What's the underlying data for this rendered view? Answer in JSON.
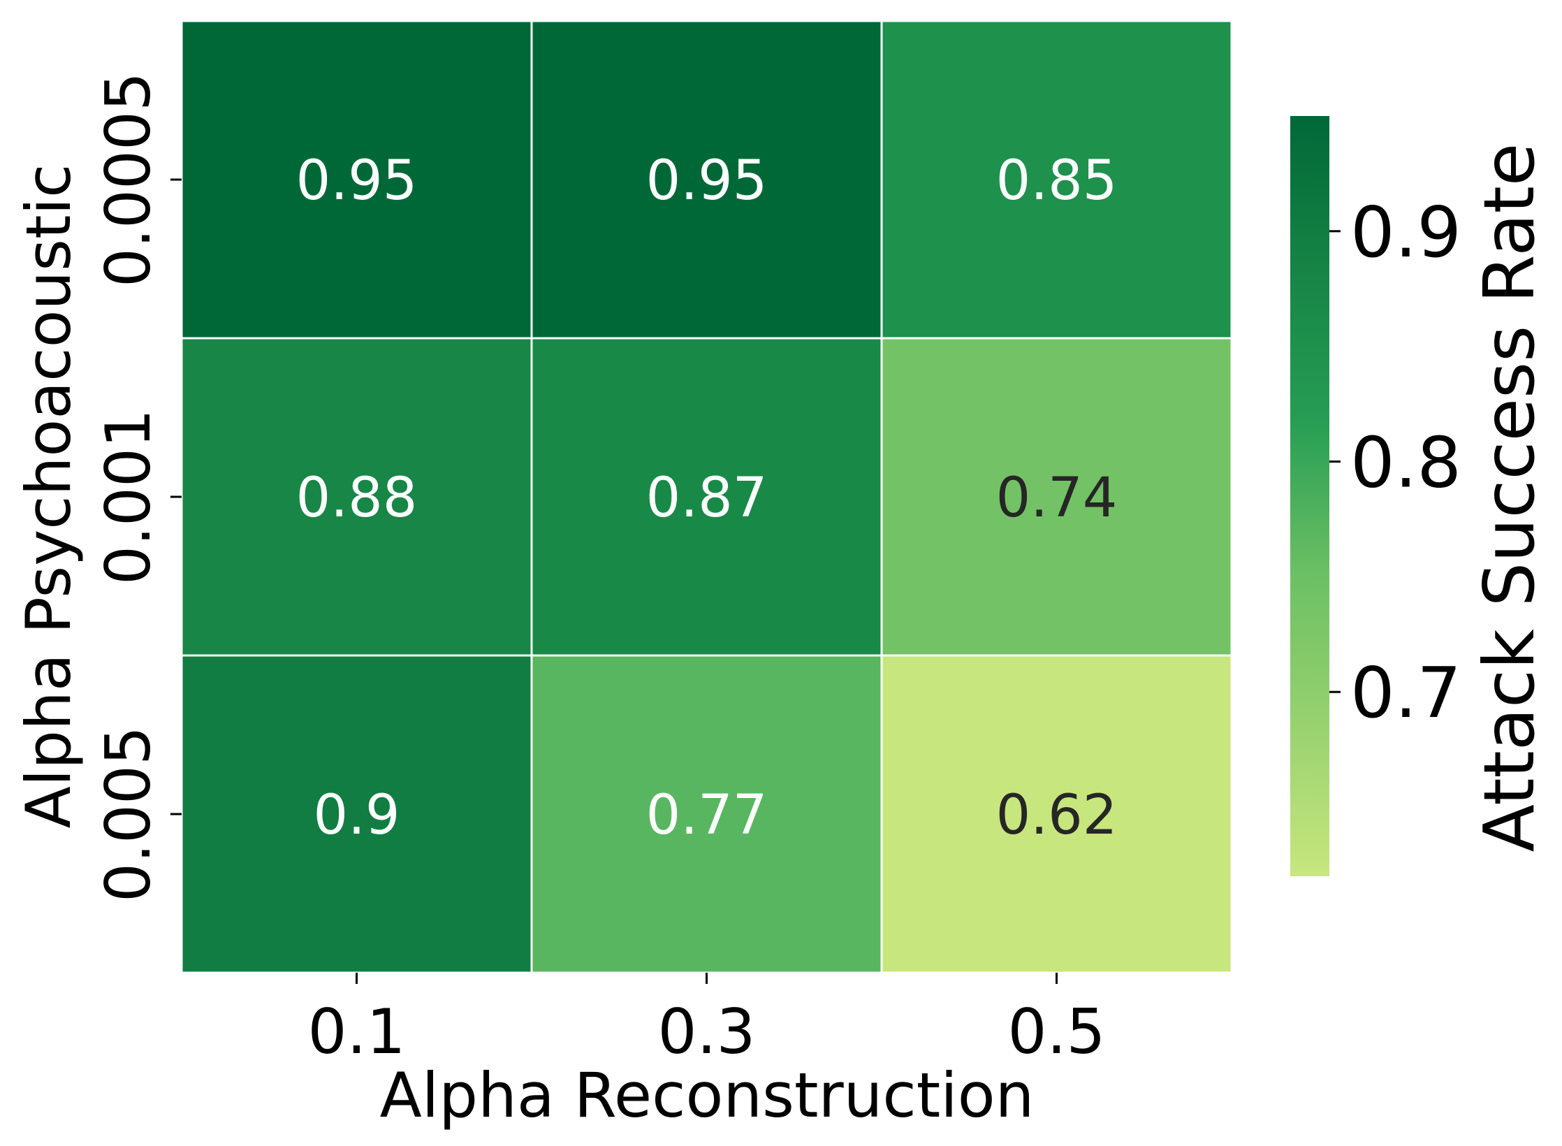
{
  "chart_data": {
    "type": "heatmap",
    "title": "",
    "xlabel": "Alpha Reconstruction",
    "ylabel": "Alpha Psychoacoustic",
    "x_categories": [
      "0.1",
      "0.3",
      "0.5"
    ],
    "y_categories": [
      "0.0005",
      "0.001",
      "0.005"
    ],
    "values": [
      [
        0.95,
        0.95,
        0.85
      ],
      [
        0.88,
        0.87,
        0.74
      ],
      [
        0.9,
        0.77,
        0.62
      ]
    ],
    "value_labels": [
      [
        "0.95",
        "0.95",
        "0.85"
      ],
      [
        "0.88",
        "0.87",
        "0.74"
      ],
      [
        "0.9",
        "0.77",
        "0.62"
      ]
    ],
    "colorbar": {
      "label": "Attack Success Rate",
      "range": [
        0.62,
        0.95
      ],
      "ticks": [
        0.7,
        0.8,
        0.9
      ],
      "tick_labels": [
        "0.7",
        "0.8",
        "0.9"
      ]
    },
    "colormap": "YlGn",
    "colors": {
      "light": "#c8e67e",
      "mid": "#6bbf64",
      "dark": "#006837",
      "grid_line": "#ffffff",
      "text_light": "#ffffff",
      "text_dark": "#262626"
    }
  }
}
